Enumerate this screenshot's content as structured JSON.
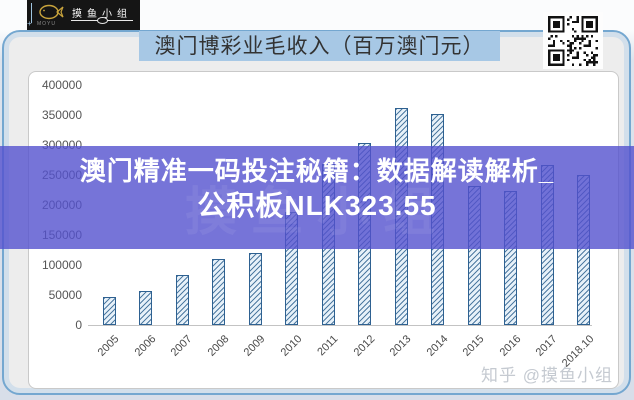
{
  "logo": {
    "brand": "摸鱼小组",
    "sub": "MOYU"
  },
  "header": {
    "title": "澳门博彩业毛收入（百万澳门元）"
  },
  "banner": {
    "line1": "澳门精准一码投注秘籍：数据解读解析_",
    "line2": "公积板NLK323.55",
    "ghost_watermark": "摸鱼小组",
    "bg_color": "#5451ce",
    "text_color": "#ffffff"
  },
  "watermark": {
    "text": "知乎 @摸鱼小组"
  },
  "icons": {
    "qr": "qr-code",
    "fish": "fish-icon"
  },
  "colors": {
    "card_border": "#74a7d0",
    "title_highlight": "#a7c8e5",
    "bar_outline": "#2e6191",
    "bar_fill": "#e7f1f9",
    "axis": "#c3c3c3"
  },
  "chart_data": {
    "type": "bar",
    "title": "澳门博彩业毛收入（百万澳门元）",
    "categories": [
      "2005",
      "2006",
      "2007",
      "2008",
      "2009",
      "2010",
      "2011",
      "2012",
      "2013",
      "2014",
      "2015",
      "2016",
      "2017",
      "2018.10"
    ],
    "values": [
      46000,
      56500,
      83000,
      110000,
      120000,
      188000,
      268000,
      304000,
      361000,
      352000,
      231000,
      223000,
      266000,
      250000
    ],
    "xlabel": "",
    "ylabel": "",
    "ylim": [
      0,
      400000
    ],
    "yticks": [
      0,
      50000,
      100000,
      150000,
      200000,
      250000,
      300000,
      350000,
      400000
    ],
    "grid": false,
    "legend": null,
    "bar_style": "diagonal-hatch",
    "xtick_rotation": -45
  }
}
